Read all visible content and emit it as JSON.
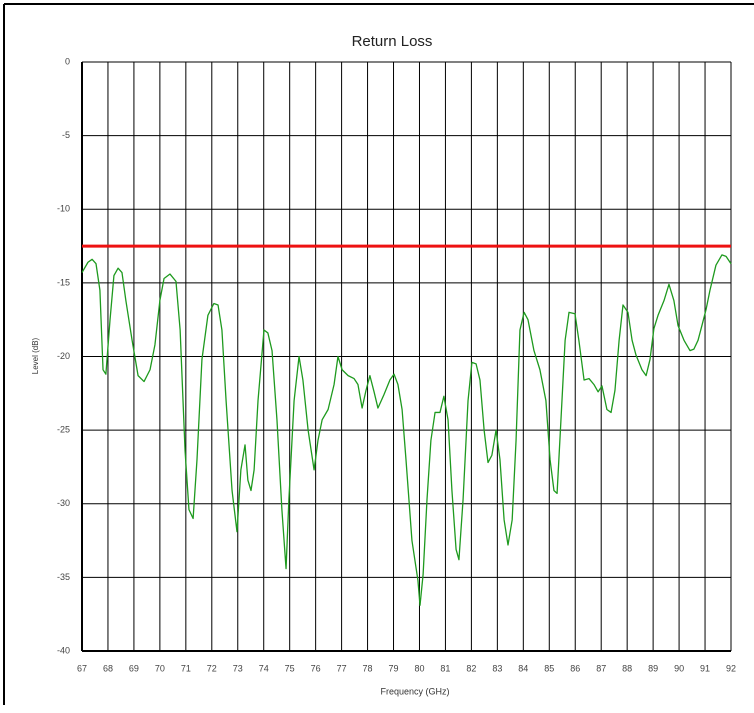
{
  "chart_data": {
    "type": "line",
    "title": "Return Loss",
    "x_label": "Frequency (GHz)",
    "y_label": "Level (dB)",
    "xlim": [
      67,
      92
    ],
    "xticks": [
      67,
      68,
      69,
      70,
      71,
      72,
      73,
      74,
      75,
      76,
      77,
      78,
      79,
      80,
      81,
      82,
      83,
      84,
      85,
      86,
      87,
      88,
      89,
      90,
      91,
      92
    ],
    "ylim": [
      -40,
      0
    ],
    "yticks": [
      0,
      -5,
      -10,
      -15,
      -20,
      -25,
      -30,
      -35,
      -40
    ],
    "grid": true,
    "threshold": {
      "value": -12.5,
      "color": "#ee1111"
    },
    "series": [
      {
        "color": "#1e9a1e",
        "x": [
          67.0,
          67.23,
          67.39,
          67.54,
          67.69,
          67.81,
          67.92,
          68.08,
          68.23,
          68.39,
          68.54,
          68.69,
          68.93,
          69.16,
          69.39,
          69.62,
          69.81,
          70.0,
          70.16,
          70.39,
          70.62,
          70.78,
          70.97,
          71.12,
          71.28,
          71.43,
          71.62,
          71.85,
          72.08,
          72.24,
          72.39,
          72.55,
          72.78,
          72.97,
          73.12,
          73.28,
          73.39,
          73.51,
          73.63,
          73.78,
          74.01,
          74.16,
          74.32,
          74.51,
          74.7,
          74.86,
          74.97,
          75.17,
          75.36,
          75.51,
          75.71,
          75.94,
          76.09,
          76.25,
          76.48,
          76.71,
          76.86,
          77.02,
          77.25,
          77.48,
          77.63,
          77.79,
          77.94,
          78.09,
          78.25,
          78.4,
          78.63,
          78.86,
          79.02,
          79.17,
          79.33,
          79.48,
          79.71,
          79.94,
          80.02,
          80.14,
          80.29,
          80.44,
          80.6,
          80.79,
          80.94,
          81.1,
          81.25,
          81.41,
          81.52,
          81.68,
          81.87,
          82.02,
          82.18,
          82.33,
          82.49,
          82.64,
          82.79,
          82.95,
          83.1,
          83.26,
          83.41,
          83.57,
          83.72,
          83.87,
          84.03,
          84.18,
          84.41,
          84.64,
          84.87,
          85.03,
          85.18,
          85.3,
          85.45,
          85.61,
          85.76,
          85.99,
          86.14,
          86.34,
          86.53,
          86.72,
          86.88,
          87.03,
          87.22,
          87.38,
          87.53,
          87.69,
          87.84,
          88.03,
          88.19,
          88.34,
          88.57,
          88.73,
          88.88,
          89.03,
          89.19,
          89.42,
          89.61,
          89.8,
          89.96,
          90.19,
          90.42,
          90.57,
          90.73,
          90.88,
          91.04,
          91.19,
          91.42,
          91.65,
          91.81,
          92.0
        ],
        "values": [
          -14.3,
          -13.6,
          -13.4,
          -13.7,
          -15.5,
          -20.9,
          -21.2,
          -17.5,
          -14.5,
          -14.0,
          -14.3,
          -16.2,
          -18.9,
          -21.3,
          -21.7,
          -20.9,
          -19.2,
          -16.2,
          -14.7,
          -14.4,
          -14.9,
          -18.2,
          -26.4,
          -30.4,
          -31.0,
          -27.0,
          -20.2,
          -17.2,
          -16.4,
          -16.5,
          -18.2,
          -23.0,
          -29.1,
          -31.9,
          -27.7,
          -26.0,
          -28.4,
          -29.1,
          -27.7,
          -23.0,
          -18.2,
          -18.4,
          -19.6,
          -24.3,
          -30.4,
          -34.4,
          -29.7,
          -23.0,
          -20.0,
          -21.6,
          -25.0,
          -27.7,
          -25.7,
          -24.3,
          -23.6,
          -21.9,
          -20.0,
          -20.9,
          -21.3,
          -21.5,
          -21.9,
          -23.5,
          -22.3,
          -21.3,
          -22.4,
          -23.5,
          -22.6,
          -21.6,
          -21.2,
          -21.9,
          -23.6,
          -27.0,
          -32.5,
          -35.2,
          -36.9,
          -34.8,
          -29.7,
          -25.7,
          -23.8,
          -23.8,
          -22.7,
          -24.3,
          -29.1,
          -33.1,
          -33.8,
          -29.7,
          -23.0,
          -20.4,
          -20.5,
          -21.6,
          -25.0,
          -27.2,
          -26.7,
          -25.0,
          -27.0,
          -31.1,
          -32.8,
          -31.1,
          -25.7,
          -18.2,
          -17.0,
          -17.5,
          -19.6,
          -20.9,
          -23.0,
          -27.0,
          -29.1,
          -29.3,
          -24.3,
          -18.9,
          -17.0,
          -17.1,
          -18.9,
          -21.6,
          -21.5,
          -21.9,
          -22.4,
          -22.0,
          -23.6,
          -23.8,
          -22.3,
          -18.9,
          -16.5,
          -17.0,
          -18.9,
          -19.9,
          -20.9,
          -21.3,
          -20.2,
          -18.1,
          -17.2,
          -16.2,
          -15.1,
          -16.2,
          -17.9,
          -18.9,
          -19.6,
          -19.5,
          -18.9,
          -17.9,
          -16.8,
          -15.5,
          -13.8,
          -13.1,
          -13.2,
          -13.7
        ]
      }
    ]
  }
}
